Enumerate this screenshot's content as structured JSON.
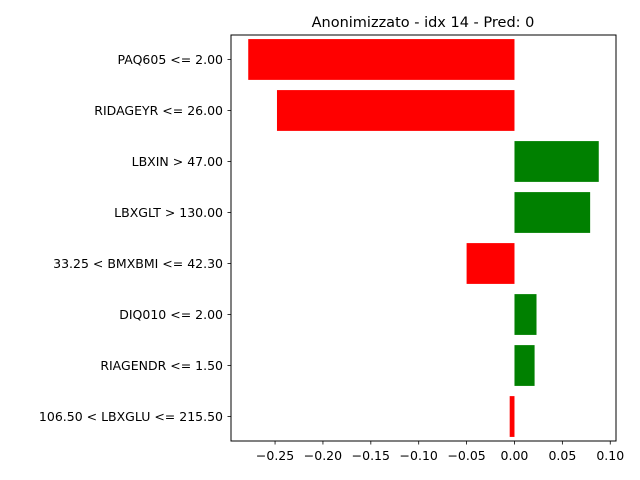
{
  "chart_data": {
    "type": "bar",
    "orientation": "horizontal",
    "title": "Anonimizzato - idx 14 - Pred: 0",
    "xlabel": "",
    "ylabel": "",
    "categories": [
      "PAQ605 <= 2.00",
      "RIDAGEYR <= 26.00",
      "LBXIN > 47.00",
      "LBXGLT > 130.00",
      "33.25 < BMXBMI <= 42.30",
      "DIQ010 <= 2.00",
      "RIAGENDR <= 1.50",
      "106.50 < LBXGLU <= 215.50"
    ],
    "values": [
      -0.278,
      -0.248,
      0.088,
      0.079,
      -0.05,
      0.023,
      0.021,
      -0.005
    ],
    "xlim": [
      -0.296,
      0.106
    ],
    "xticks": [
      -0.25,
      -0.2,
      -0.15,
      -0.1,
      -0.05,
      0.0,
      0.05,
      0.1
    ],
    "xtick_labels": [
      "−0.25",
      "−0.20",
      "−0.15",
      "−0.10",
      "−0.05",
      "0.00",
      "0.05",
      "0.10"
    ],
    "colors": {
      "positive": "#008000",
      "negative": "#ff0000"
    },
    "grid": false,
    "legend": "none"
  }
}
